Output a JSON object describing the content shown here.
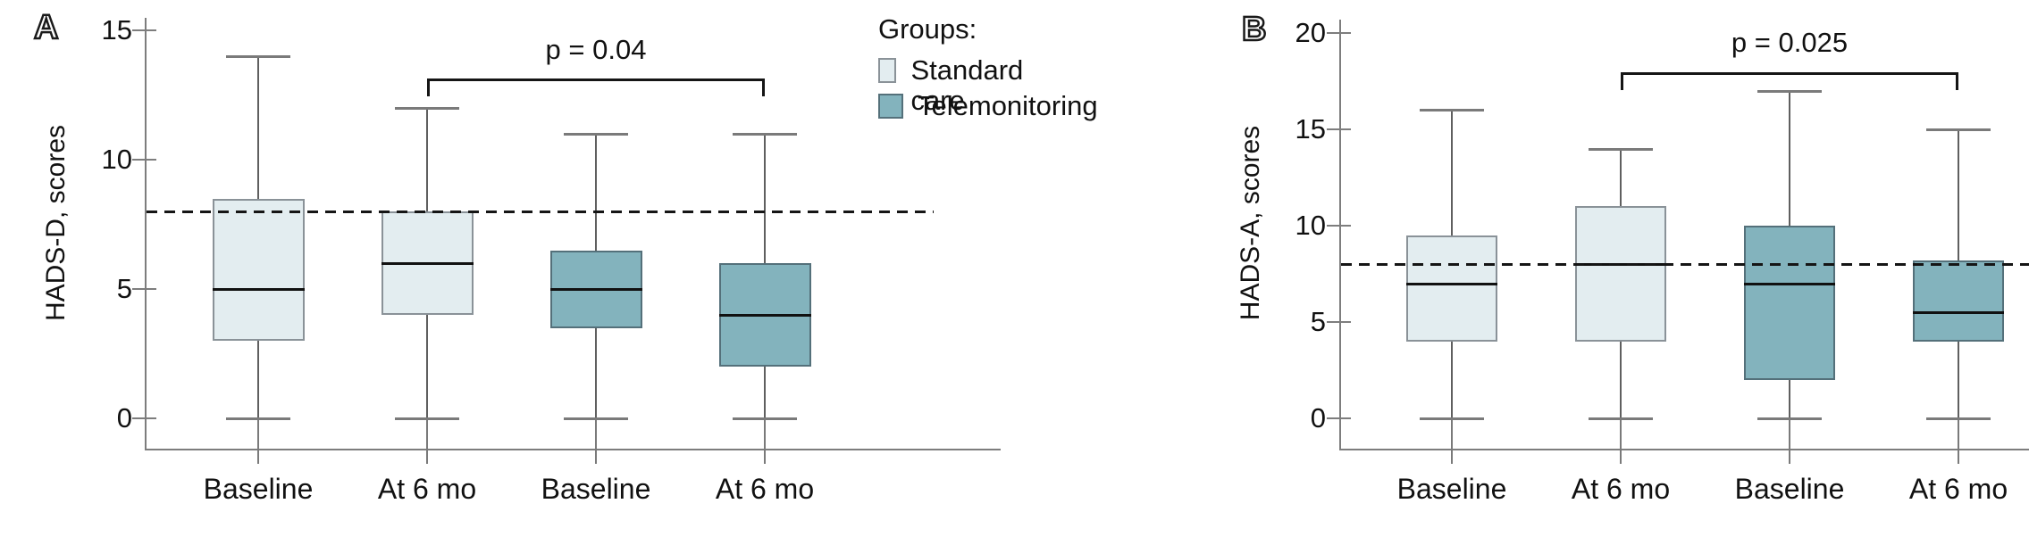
{
  "legend": {
    "title": "Groups:",
    "items": [
      {
        "label": "Standard care",
        "fill": "#e3edf0",
        "border": "#8a9298"
      },
      {
        "label": "Telemonitoring",
        "fill": "#83b3bd",
        "border": "#54707a"
      }
    ]
  },
  "colors": {
    "median": "#111111",
    "whisker": "#5f5f5f",
    "cap": "#7a7a7a",
    "axis": "#7d7d7d",
    "cutoff_dash": "#151515",
    "bracket": "#151515",
    "text": "#111111"
  },
  "chart_data": [
    {
      "type": "box",
      "panel_label": "A",
      "ylabel": "HADS-D, scores",
      "yticks": [
        0,
        5,
        10,
        15
      ],
      "ylim": [
        0,
        15.5
      ],
      "grid": false,
      "cutoff_line": 8,
      "categories": [
        "Baseline",
        "At 6 mo",
        "Baseline",
        "At 6 mo"
      ],
      "boxes": [
        {
          "category": "Baseline",
          "group_index": 0,
          "group": "Standard care",
          "whisker_low": 0,
          "q1": 3,
          "median": 5,
          "q3": 8.5,
          "whisker_high": 14
        },
        {
          "category": "At 6 mo",
          "group_index": 0,
          "group": "Standard care",
          "whisker_low": 0,
          "q1": 4,
          "median": 6,
          "q3": 8,
          "whisker_high": 12
        },
        {
          "category": "Baseline",
          "group_index": 1,
          "group": "Telemonitoring",
          "whisker_low": 0,
          "q1": 3.5,
          "median": 5,
          "q3": 6.5,
          "whisker_high": 11
        },
        {
          "category": "At 6 mo",
          "group_index": 1,
          "group": "Telemonitoring",
          "whisker_low": 0,
          "q1": 2,
          "median": 4,
          "q3": 6,
          "whisker_high": 11
        }
      ],
      "significance": {
        "text": "p = 0.04",
        "from_box": 1,
        "to_box": 3
      }
    },
    {
      "type": "box",
      "panel_label": "B",
      "ylabel": "HADS-A, scores",
      "yticks": [
        0,
        5,
        10,
        15,
        20
      ],
      "ylim": [
        0,
        20.5
      ],
      "grid": false,
      "cutoff_line": 8,
      "categories": [
        "Baseline",
        "At 6 mo",
        "Baseline",
        "At 6 mo"
      ],
      "boxes": [
        {
          "category": "Baseline",
          "group_index": 0,
          "group": "Standard care",
          "whisker_low": 0,
          "q1": 4,
          "median": 7,
          "q3": 9.5,
          "whisker_high": 16
        },
        {
          "category": "At 6 mo",
          "group_index": 0,
          "group": "Standard care",
          "whisker_low": 0,
          "q1": 4,
          "median": 8,
          "q3": 11,
          "whisker_high": 14
        },
        {
          "category": "Baseline",
          "group_index": 1,
          "group": "Telemonitoring",
          "whisker_low": 0,
          "q1": 2,
          "median": 7,
          "q3": 10,
          "whisker_high": 17
        },
        {
          "category": "At 6 mo",
          "group_index": 1,
          "group": "Telemonitoring",
          "whisker_low": 0,
          "q1": 4,
          "median": 5.5,
          "q3": 8.2,
          "whisker_high": 15
        }
      ],
      "significance": {
        "text": "p = 0.025",
        "from_box": 1,
        "to_box": 3
      }
    }
  ]
}
